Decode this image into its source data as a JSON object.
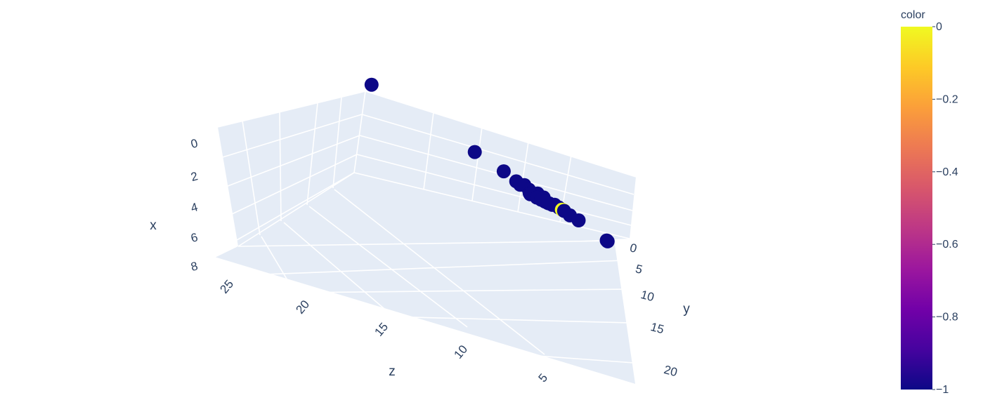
{
  "chart_data": {
    "type": "scatter",
    "mode": "3d",
    "axes": {
      "x": {
        "title": "x",
        "ticks": [
          "0",
          "2",
          "4",
          "6",
          "8"
        ],
        "range": [
          0,
          8
        ]
      },
      "y": {
        "title": "y",
        "ticks": [
          "0",
          "5",
          "10",
          "15",
          "20"
        ],
        "range": [
          0,
          21
        ]
      },
      "z": {
        "title": "z",
        "ticks": [
          "5",
          "10",
          "15",
          "20",
          "25"
        ],
        "range": [
          0,
          28
        ]
      }
    },
    "scene_background": "#e5ecf6",
    "grid": true,
    "colorbar": {
      "title": "color",
      "ticks": [
        "0",
        "−0.2",
        "−0.4",
        "−0.6",
        "−0.8",
        "−1"
      ],
      "tick_values": [
        0,
        -0.2,
        -0.4,
        -0.6,
        -0.8,
        -1
      ],
      "range": [
        -1,
        0
      ],
      "colorscale": [
        "#0d0887",
        "#46039f",
        "#7201a8",
        "#9c179e",
        "#bd3786",
        "#d8576b",
        "#ed7953",
        "#fb9f3a",
        "#fdca26",
        "#f0f921"
      ]
    },
    "points": [
      {
        "x": 0.3,
        "y": 0,
        "z": 27,
        "color": -1
      },
      {
        "x": 0.5,
        "y": 0,
        "z": 15,
        "color": -1
      },
      {
        "x": 1.0,
        "y": 0,
        "z": 11.5,
        "color": -1
      },
      {
        "x": 1.4,
        "y": 0,
        "z": 9,
        "color": -1
      },
      {
        "x": 1.3,
        "y": 0,
        "z": 7.5,
        "color": -1
      },
      {
        "x": 1.3,
        "y": 0,
        "z": 6.8,
        "color": -1
      },
      {
        "x": 1.4,
        "y": 0,
        "z": 5.5,
        "color": -1
      },
      {
        "x": 1.5,
        "y": 0,
        "z": 5,
        "color": -1
      },
      {
        "x": 1.2,
        "y": 0,
        "z": 4.5,
        "color": 0
      },
      {
        "x": 1.6,
        "y": 0,
        "z": 4.6,
        "color": 0
      },
      {
        "x": 1.4,
        "y": 0,
        "z": 4.4,
        "color": -1
      },
      {
        "x": 2.3,
        "y": 0.4,
        "z": 3.6,
        "color": -1
      },
      {
        "x": 2.2,
        "y": 1.5,
        "z": 3.0,
        "color": -1
      },
      {
        "x": 2.9,
        "y": 0,
        "z": 9.5,
        "color": -1
      },
      {
        "x": 3.0,
        "y": 0,
        "z": 8,
        "color": -1
      },
      {
        "x": 3.0,
        "y": 0,
        "z": 5.3,
        "color": -1
      },
      {
        "x": 3.6,
        "y": 0,
        "z": 5.5,
        "color": -1
      },
      {
        "x": 3.7,
        "y": 0,
        "z": 8.8,
        "color": -1
      },
      {
        "x": 4.0,
        "y": 0,
        "z": 5.5,
        "color": -1
      },
      {
        "x": 4.5,
        "y": 0,
        "z": 5.7,
        "color": -1
      },
      {
        "x": 5.0,
        "y": 0,
        "z": 6.0,
        "color": -1
      },
      {
        "x": 5.7,
        "y": 0,
        "z": 6.3,
        "color": -1
      },
      {
        "x": 5.8,
        "y": 0,
        "z": 7.1,
        "color": -1
      },
      {
        "x": 6.6,
        "y": 0,
        "z": 6.8,
        "color": -1
      },
      {
        "x": 6.0,
        "y": 5.5,
        "z": 0,
        "color": -1
      },
      {
        "x": 6.8,
        "y": 6.5,
        "z": 0,
        "color": -1
      }
    ]
  }
}
